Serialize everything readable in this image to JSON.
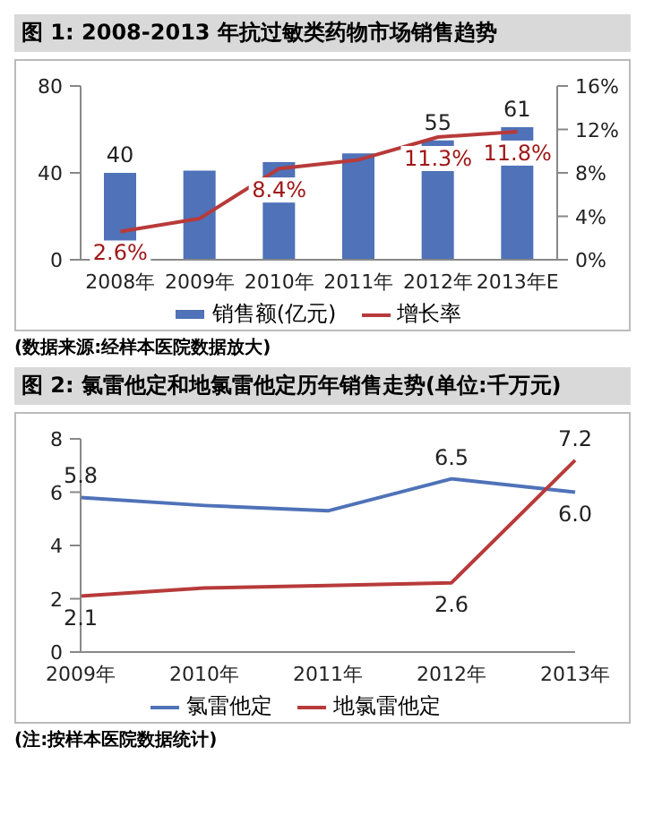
{
  "chart_data": [
    {
      "type": "bar",
      "title": "图 1: 2008-2013 年抗过敏类药物市场销售趋势",
      "categories": [
        "2008年",
        "2009年",
        "2010年",
        "2011年",
        "2012年",
        "2013年E"
      ],
      "series": [
        {
          "name": "销售额(亿元)",
          "color": "#4f72b8",
          "values": [
            40,
            41,
            45,
            49,
            55,
            61
          ],
          "value_labels": [
            "40",
            null,
            null,
            null,
            "55",
            "61"
          ]
        },
        {
          "name": "增长率",
          "type": "line",
          "axis": "y2",
          "color": "#b83a3a",
          "values": [
            2.6,
            3.8,
            8.4,
            9.2,
            11.3,
            11.8
          ],
          "value_labels": [
            "2.6%",
            null,
            "8.4%",
            null,
            "11.3%",
            "11.8%"
          ]
        }
      ],
      "ylim": [
        0,
        80
      ],
      "yticks": [
        0,
        40,
        80
      ],
      "y2lim": [
        0,
        16
      ],
      "y2ticks": [
        {
          "value": 0,
          "label": "0%"
        },
        {
          "value": 4,
          "label": "4%"
        },
        {
          "value": 8,
          "label": "8%"
        },
        {
          "value": 12,
          "label": "12%"
        },
        {
          "value": 16,
          "label": "16%"
        }
      ],
      "marker": "none",
      "legend": "bottom",
      "annotations": [
        "(数据来源:经样本医院数据放大)"
      ]
    },
    {
      "type": "line",
      "title": "图 2: 氯雷他定和地氯雷他定历年销售走势(单位:千万元)",
      "categories": [
        "2009年",
        "2010年",
        "2011年",
        "2012年",
        "2013年"
      ],
      "series": [
        {
          "name": "氯雷他定",
          "color": "#4f72b8",
          "values": [
            5.8,
            5.5,
            5.3,
            6.5,
            6.0
          ],
          "value_labels": [
            "5.8",
            null,
            null,
            "6.5",
            "6.0"
          ]
        },
        {
          "name": "地氯雷他定",
          "color": "#b83a3a",
          "values": [
            2.1,
            2.4,
            2.5,
            2.6,
            7.2
          ],
          "value_labels": [
            "2.1",
            null,
            null,
            "2.6",
            "7.2"
          ]
        }
      ],
      "ylim": [
        0,
        8
      ],
      "yticks": [
        0,
        2,
        4,
        6,
        8
      ],
      "marker": "none",
      "legend": "bottom",
      "annotations": [
        "(注:按样本医院数据统计)"
      ]
    }
  ]
}
